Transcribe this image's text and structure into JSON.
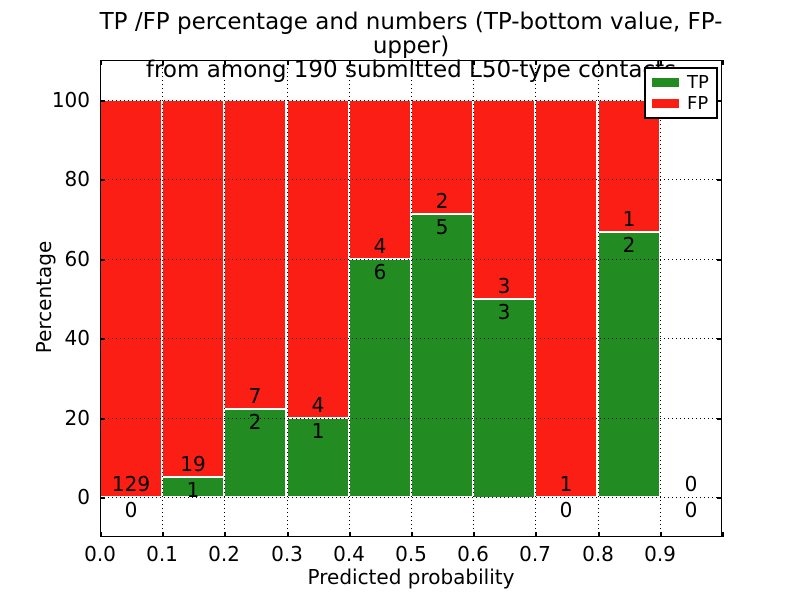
{
  "figure": {
    "title_line1": "TP /FP percentage and numbers (TP-bottom value, FP-upper)",
    "title_line2": "from among 190 submitted L50-type contacts",
    "xlabel": "Predicted probability",
    "ylabel": "Percentage"
  },
  "chart_data": {
    "type": "bar",
    "stacked": true,
    "orientation": "vertical",
    "title": "TP /FP percentage and numbers (TP-bottom value, FP-upper) from among 190 submitted L50-type contacts",
    "xlabel": "Predicted probability",
    "ylabel": "Percentage",
    "xlim": [
      0.0,
      1.0
    ],
    "ylim": [
      -10,
      110
    ],
    "grid": "dotted",
    "legend_position": "upper right",
    "bin_width": 0.1,
    "bin_starts": [
      0.0,
      0.1,
      0.2,
      0.3,
      0.4,
      0.5,
      0.6,
      0.7,
      0.8,
      0.9
    ],
    "x_tick_labels": [
      "0.0",
      "0.1",
      "0.2",
      "0.3",
      "0.4",
      "0.5",
      "0.6",
      "0.7",
      "0.8",
      "0.9"
    ],
    "y_ticks": [
      0,
      20,
      40,
      60,
      80,
      100
    ],
    "y_tick_labels": [
      "0",
      "20",
      "40",
      "60",
      "80",
      "100"
    ],
    "series": [
      {
        "name": "TP",
        "color": "#228b22",
        "counts": [
          0,
          1,
          2,
          1,
          6,
          5,
          3,
          0,
          2,
          0
        ],
        "pct": [
          0,
          5,
          22.2,
          20,
          60,
          71.4,
          50,
          0,
          66.7,
          0
        ]
      },
      {
        "name": "FP",
        "color": "#fb1e14",
        "counts": [
          129,
          19,
          7,
          4,
          4,
          2,
          3,
          1,
          1,
          0
        ],
        "pct": [
          100,
          95,
          77.8,
          80,
          40,
          28.6,
          50,
          100,
          33.3,
          0
        ]
      }
    ],
    "total_contacts": 190
  }
}
